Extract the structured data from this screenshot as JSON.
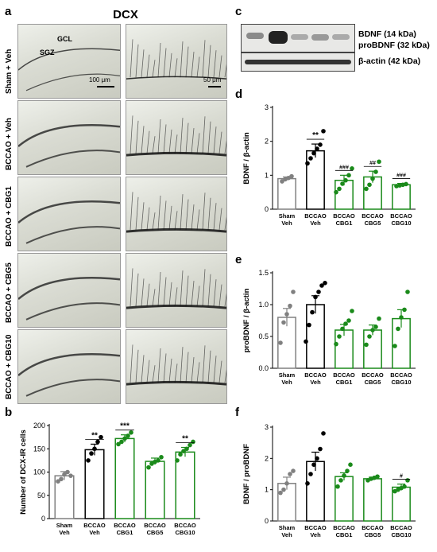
{
  "panels": {
    "a": {
      "label": "a",
      "title": "DCX",
      "tags": {
        "gcl": "GCL",
        "sgz": "SGZ"
      },
      "scalebars": {
        "left": "100 μm",
        "right": "50 μm"
      },
      "rows": [
        "Sham + Veh",
        "BCCAO + Veh",
        "BCCAO + CBG1",
        "BCCAO + CBG5",
        "BCCAO + CBG10"
      ]
    },
    "c": {
      "label": "c",
      "bands": {
        "bdnf": "BDNF (14 kDa)",
        "probdnf": "proBDNF (32 kDa)",
        "actin": "β-actin (42 kDa)"
      }
    },
    "b": {
      "label": "b"
    },
    "d": {
      "label": "d"
    },
    "e": {
      "label": "e"
    },
    "f": {
      "label": "f"
    }
  },
  "colors": {
    "veh": "#000000",
    "sham": "#808080",
    "cbg": "#1a8a1a"
  },
  "chart_data": [
    {
      "id": "b",
      "type": "bar",
      "categories": [
        [
          "Sham",
          "Veh"
        ],
        [
          "BCCAO",
          "Veh"
        ],
        [
          "BCCAO",
          "CBG1"
        ],
        [
          "BCCAO",
          "CBG5"
        ],
        [
          "BCCAO",
          "CBG10"
        ]
      ],
      "values": [
        92,
        148,
        172,
        123,
        143
      ],
      "errors": [
        9,
        12,
        8,
        7,
        10
      ],
      "points": [
        [
          80,
          85,
          95,
          100,
          92
        ],
        [
          125,
          140,
          150,
          165,
          175
        ],
        [
          160,
          165,
          172,
          178,
          185
        ],
        [
          110,
          118,
          122,
          125,
          132
        ],
        [
          125,
          138,
          145,
          150,
          158,
          165
        ]
      ],
      "significance": [
        "",
        "**",
        "***",
        "",
        "**"
      ],
      "ylabel": "Number of DCX-IR cells",
      "ylim": [
        0,
        200
      ],
      "yticks": [
        0,
        50,
        100,
        150,
        200
      ]
    },
    {
      "id": "d",
      "type": "bar",
      "categories": [
        [
          "Sham",
          "Veh"
        ],
        [
          "BCCAO",
          "Veh"
        ],
        [
          "BCCAO",
          "CBG1"
        ],
        [
          "BCCAO",
          "CBG5"
        ],
        [
          "BCCAO",
          "CBG10"
        ]
      ],
      "values": [
        0.9,
        1.72,
        0.85,
        0.95,
        0.72
      ],
      "errors": [
        0.05,
        0.2,
        0.15,
        0.17,
        0.04
      ],
      "points": [
        [
          0.82,
          0.88,
          0.92,
          0.97
        ],
        [
          1.35,
          1.5,
          1.65,
          1.78,
          1.9,
          2.3
        ],
        [
          0.5,
          0.6,
          0.75,
          0.85,
          1.0,
          1.2
        ],
        [
          0.6,
          0.72,
          0.9,
          1.1,
          1.4
        ],
        [
          0.68,
          0.7,
          0.72,
          0.74
        ]
      ],
      "significance": [
        "",
        "**",
        "###",
        "##",
        "###"
      ],
      "ylabel": "BDNF / β-actin",
      "ylim": [
        0,
        3
      ],
      "yticks": [
        0,
        1,
        2,
        3
      ]
    },
    {
      "id": "e",
      "type": "bar",
      "categories": [
        [
          "Sham",
          "Veh"
        ],
        [
          "BCCAO",
          "Veh"
        ],
        [
          "BCCAO",
          "CBG1"
        ],
        [
          "BCCAO",
          "CBG5"
        ],
        [
          "BCCAO",
          "CBG10"
        ]
      ],
      "values": [
        0.8,
        1.0,
        0.6,
        0.6,
        0.78
      ],
      "errors": [
        0.14,
        0.14,
        0.09,
        0.08,
        0.14
      ],
      "points": [
        [
          0.4,
          0.72,
          0.85,
          0.98,
          1.2
        ],
        [
          0.42,
          0.68,
          0.88,
          1.12,
          1.2,
          1.3,
          1.34
        ],
        [
          0.38,
          0.5,
          0.62,
          0.7,
          0.75,
          0.9
        ],
        [
          0.37,
          0.5,
          0.6,
          0.65,
          0.78
        ],
        [
          0.35,
          0.62,
          0.8,
          0.92,
          1.2
        ]
      ],
      "significance": [
        "",
        "",
        "",
        "",
        ""
      ],
      "ylabel": "proBDNF / β-actin",
      "ylim": [
        0,
        1.5
      ],
      "yticks": [
        0.0,
        0.5,
        1.0,
        1.5
      ]
    },
    {
      "id": "f",
      "type": "bar",
      "categories": [
        [
          "Sham",
          "Veh"
        ],
        [
          "BCCAO",
          "Veh"
        ],
        [
          "BCCAO",
          "CBG1"
        ],
        [
          "BCCAO",
          "CBG5"
        ],
        [
          "BCCAO",
          "CBG10"
        ]
      ],
      "values": [
        1.2,
        1.9,
        1.42,
        1.35,
        1.08
      ],
      "errors": [
        0.2,
        0.3,
        0.12,
        0.05,
        0.1
      ],
      "points": [
        [
          0.9,
          1.0,
          1.2,
          1.5,
          1.6
        ],
        [
          1.2,
          1.5,
          1.8,
          2.0,
          2.3,
          2.8
        ],
        [
          1.1,
          1.3,
          1.45,
          1.6,
          1.8
        ],
        [
          1.3,
          1.35,
          1.38,
          1.42
        ],
        [
          0.95,
          1.0,
          1.05,
          1.1,
          1.3
        ]
      ],
      "significance": [
        "",
        "",
        "",
        "",
        "#"
      ],
      "ylabel": "BDNF / proBDNF",
      "ylim": [
        0,
        3
      ],
      "yticks": [
        0,
        1,
        2,
        3
      ]
    }
  ]
}
